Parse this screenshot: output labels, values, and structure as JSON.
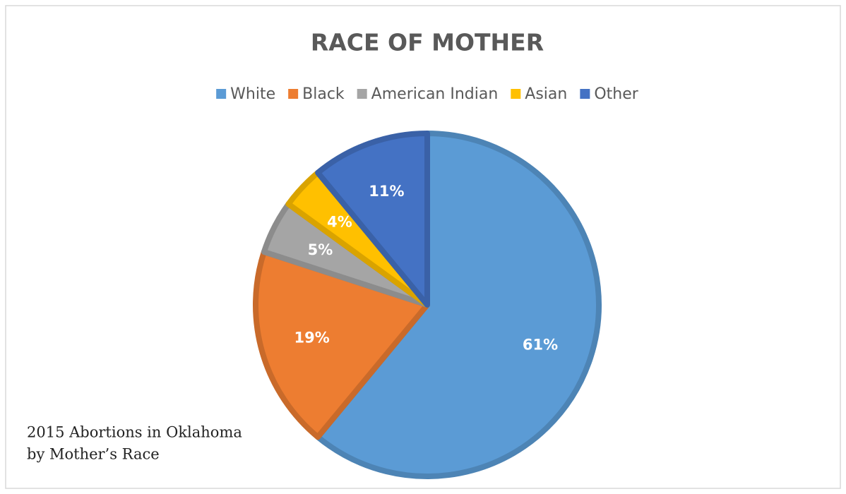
{
  "chart_data": {
    "type": "pie",
    "title": "RACE OF MOTHER",
    "categories": [
      "White",
      "Black",
      "American Indian",
      "Asian",
      "Other"
    ],
    "values": [
      61,
      19,
      5,
      4,
      11
    ],
    "value_labels": [
      "61%",
      "19%",
      "5%",
      "4%",
      "11%"
    ],
    "colors": [
      "#5b9bd5",
      "#ed7d31",
      "#a5a5a5",
      "#ffc000",
      "#4472c4"
    ],
    "legend": "top",
    "annotation": [
      "2015 Abortions in Oklahoma",
      "by Mother’s Race"
    ]
  }
}
